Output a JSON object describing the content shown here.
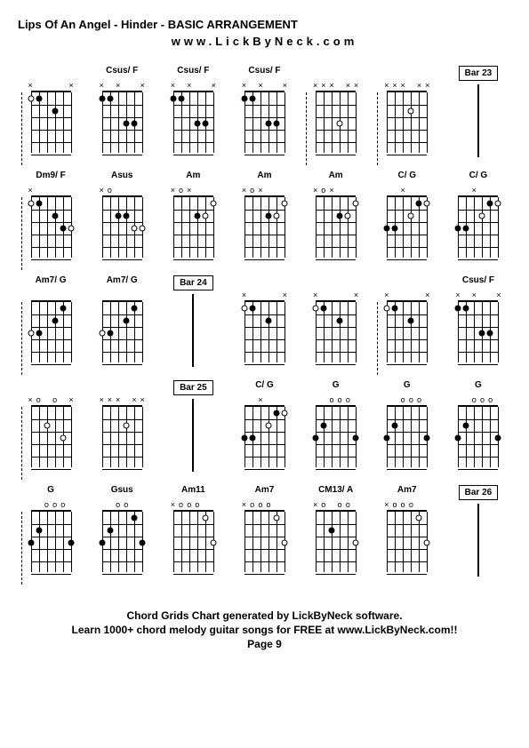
{
  "title": "Lips Of An Angel - Hinder - BASIC ARRANGEMENT",
  "subtitle": "www.LickByNeck.com",
  "footer": {
    "line1": "Chord Grids Chart generated by LickByNeck software.",
    "line2": "Learn 1000+ chord melody guitar songs for FREE at www.LickByNeck.com!!",
    "page": "Page 9"
  },
  "styling": {
    "background_color": "#ffffff",
    "text_color": "#000000",
    "grid_cols": 7,
    "grid_rows": 5,
    "diagram_width": 55,
    "diagram_height": 85,
    "fret_count": 5,
    "string_count": 6,
    "title_fontsize": 13,
    "label_fontsize": 10,
    "footer_fontsize": 12
  },
  "cells": [
    {
      "type": "chord",
      "label": "",
      "dashed": true,
      "nut": [
        "x",
        "",
        "",
        "",
        "",
        "x"
      ],
      "dots": [
        {
          "s": 0,
          "f": 1,
          "open": true
        },
        {
          "s": 1,
          "f": 1
        },
        {
          "s": 3,
          "f": 2
        }
      ]
    },
    {
      "type": "chord",
      "label": "Csus/ F",
      "nut": [
        "x",
        "",
        "x",
        "",
        "",
        "x"
      ],
      "dots": [
        {
          "s": 0,
          "f": 1
        },
        {
          "s": 1,
          "f": 1
        },
        {
          "s": 3,
          "f": 3
        },
        {
          "s": 4,
          "f": 3
        }
      ]
    },
    {
      "type": "chord",
      "label": "Csus/ F",
      "nut": [
        "x",
        "",
        "x",
        "",
        "",
        "x"
      ],
      "dots": [
        {
          "s": 0,
          "f": 1
        },
        {
          "s": 1,
          "f": 1
        },
        {
          "s": 3,
          "f": 3
        },
        {
          "s": 4,
          "f": 3
        }
      ]
    },
    {
      "type": "chord",
      "label": "Csus/ F",
      "nut": [
        "x",
        "",
        "x",
        "",
        "",
        "x"
      ],
      "dots": [
        {
          "s": 0,
          "f": 1
        },
        {
          "s": 1,
          "f": 1
        },
        {
          "s": 3,
          "f": 3
        },
        {
          "s": 4,
          "f": 3
        }
      ]
    },
    {
      "type": "chord",
      "label": "",
      "dashed": true,
      "nut": [
        "x",
        "x",
        "x",
        "",
        "x",
        "x"
      ],
      "dots": [
        {
          "s": 3,
          "f": 3,
          "open": true
        }
      ]
    },
    {
      "type": "chord",
      "label": "",
      "dashed": true,
      "nut": [
        "x",
        "x",
        "x",
        "",
        "x",
        "x"
      ],
      "dots": [
        {
          "s": 3,
          "f": 2,
          "open": true
        }
      ]
    },
    {
      "type": "bar",
      "label": "Bar 23"
    },
    {
      "type": "chord",
      "label": "Dm9/ F",
      "dashed": true,
      "nut": [
        "x",
        "",
        "",
        "",
        "",
        ""
      ],
      "dots": [
        {
          "s": 0,
          "f": 1,
          "open": true
        },
        {
          "s": 1,
          "f": 1
        },
        {
          "s": 3,
          "f": 2
        },
        {
          "s": 4,
          "f": 3
        },
        {
          "s": 5,
          "f": 3,
          "open": true
        }
      ]
    },
    {
      "type": "chord",
      "label": "Asus",
      "nut": [
        "x",
        "o",
        "",
        "",
        "",
        ""
      ],
      "dots": [
        {
          "s": 2,
          "f": 2
        },
        {
          "s": 3,
          "f": 2
        },
        {
          "s": 4,
          "f": 3,
          "open": true
        },
        {
          "s": 5,
          "f": 3,
          "open": true
        }
      ]
    },
    {
      "type": "chord",
      "label": "Am",
      "nut": [
        "x",
        "o",
        "x",
        "",
        "",
        ""
      ],
      "dots": [
        {
          "s": 3,
          "f": 2
        },
        {
          "s": 4,
          "f": 2,
          "open": true
        },
        {
          "s": 5,
          "f": 1,
          "open": true
        }
      ]
    },
    {
      "type": "chord",
      "label": "Am",
      "nut": [
        "x",
        "o",
        "x",
        "",
        "",
        ""
      ],
      "dots": [
        {
          "s": 3,
          "f": 2
        },
        {
          "s": 4,
          "f": 2,
          "open": true
        },
        {
          "s": 5,
          "f": 1,
          "open": true
        }
      ]
    },
    {
      "type": "chord",
      "label": "Am",
      "nut": [
        "x",
        "o",
        "x",
        "",
        "",
        ""
      ],
      "dots": [
        {
          "s": 3,
          "f": 2
        },
        {
          "s": 4,
          "f": 2,
          "open": true
        },
        {
          "s": 5,
          "f": 1,
          "open": true
        }
      ]
    },
    {
      "type": "chord",
      "label": "C/ G",
      "nut": [
        "",
        "",
        "x",
        "",
        "",
        ""
      ],
      "dots": [
        {
          "s": 0,
          "f": 3
        },
        {
          "s": 1,
          "f": 3
        },
        {
          "s": 3,
          "f": 2,
          "open": true
        },
        {
          "s": 4,
          "f": 1
        },
        {
          "s": 5,
          "f": 1,
          "open": true
        }
      ]
    },
    {
      "type": "chord",
      "label": "C/ G",
      "nut": [
        "",
        "",
        "x",
        "",
        "",
        ""
      ],
      "dots": [
        {
          "s": 0,
          "f": 3
        },
        {
          "s": 1,
          "f": 3
        },
        {
          "s": 3,
          "f": 2,
          "open": true
        },
        {
          "s": 4,
          "f": 1
        },
        {
          "s": 5,
          "f": 1,
          "open": true
        }
      ]
    },
    {
      "type": "chord",
      "label": "Am7/ G",
      "dashed": true,
      "nut": [
        "",
        "",
        "",
        "",
        "",
        ""
      ],
      "dots": [
        {
          "s": 0,
          "f": 3,
          "open": true
        },
        {
          "s": 1,
          "f": 3
        },
        {
          "s": 3,
          "f": 2
        },
        {
          "s": 4,
          "f": 1
        }
      ]
    },
    {
      "type": "chord",
      "label": "Am7/ G",
      "nut": [
        "",
        "",
        "",
        "",
        "",
        ""
      ],
      "dots": [
        {
          "s": 0,
          "f": 3,
          "open": true
        },
        {
          "s": 1,
          "f": 3
        },
        {
          "s": 3,
          "f": 2
        },
        {
          "s": 4,
          "f": 1
        }
      ]
    },
    {
      "type": "bar",
      "label": "Bar 24"
    },
    {
      "type": "chord",
      "label": "",
      "nut": [
        "x",
        "",
        "",
        "",
        "",
        "x"
      ],
      "dots": [
        {
          "s": 0,
          "f": 1,
          "open": true
        },
        {
          "s": 1,
          "f": 1
        },
        {
          "s": 3,
          "f": 2
        }
      ]
    },
    {
      "type": "chord",
      "label": "",
      "nut": [
        "x",
        "",
        "",
        "",
        "",
        "x"
      ],
      "dots": [
        {
          "s": 0,
          "f": 1,
          "open": true
        },
        {
          "s": 1,
          "f": 1
        },
        {
          "s": 3,
          "f": 2
        }
      ]
    },
    {
      "type": "chord",
      "label": "",
      "dashed": true,
      "nut": [
        "x",
        "",
        "",
        "",
        "",
        "x"
      ],
      "dots": [
        {
          "s": 0,
          "f": 1,
          "open": true
        },
        {
          "s": 1,
          "f": 1
        },
        {
          "s": 3,
          "f": 2
        }
      ]
    },
    {
      "type": "chord",
      "label": "Csus/ F",
      "nut": [
        "x",
        "",
        "x",
        "",
        "",
        "x"
      ],
      "dots": [
        {
          "s": 0,
          "f": 1
        },
        {
          "s": 1,
          "f": 1
        },
        {
          "s": 3,
          "f": 3
        },
        {
          "s": 4,
          "f": 3
        }
      ]
    },
    {
      "type": "chord",
      "label": "",
      "dashed": true,
      "nut": [
        "x",
        "o",
        "",
        "o",
        "",
        "x"
      ],
      "dots": [
        {
          "s": 2,
          "f": 2,
          "open": true
        },
        {
          "s": 4,
          "f": 3,
          "open": true
        }
      ]
    },
    {
      "type": "chord",
      "label": "",
      "nut": [
        "x",
        "x",
        "x",
        "",
        "x",
        "x"
      ],
      "dots": [
        {
          "s": 3,
          "f": 2,
          "open": true
        }
      ]
    },
    {
      "type": "bar",
      "label": "Bar 25"
    },
    {
      "type": "chord",
      "label": "C/ G",
      "nut": [
        "",
        "",
        "x",
        "",
        "",
        ""
      ],
      "dots": [
        {
          "s": 0,
          "f": 3
        },
        {
          "s": 1,
          "f": 3
        },
        {
          "s": 3,
          "f": 2,
          "open": true
        },
        {
          "s": 4,
          "f": 1
        },
        {
          "s": 5,
          "f": 1,
          "open": true
        }
      ]
    },
    {
      "type": "chord",
      "label": "G",
      "nut": [
        "",
        "",
        "o",
        "o",
        "o",
        ""
      ],
      "dots": [
        {
          "s": 0,
          "f": 3
        },
        {
          "s": 1,
          "f": 2
        },
        {
          "s": 5,
          "f": 3
        }
      ]
    },
    {
      "type": "chord",
      "label": "G",
      "nut": [
        "",
        "",
        "o",
        "o",
        "o",
        ""
      ],
      "dots": [
        {
          "s": 0,
          "f": 3
        },
        {
          "s": 1,
          "f": 2
        },
        {
          "s": 5,
          "f": 3
        }
      ]
    },
    {
      "type": "chord",
      "label": "G",
      "nut": [
        "",
        "",
        "o",
        "o",
        "o",
        ""
      ],
      "dots": [
        {
          "s": 0,
          "f": 3
        },
        {
          "s": 1,
          "f": 2
        },
        {
          "s": 5,
          "f": 3
        }
      ]
    },
    {
      "type": "chord",
      "label": "G",
      "dashed": true,
      "nut": [
        "",
        "",
        "o",
        "o",
        "o",
        ""
      ],
      "dots": [
        {
          "s": 0,
          "f": 3
        },
        {
          "s": 1,
          "f": 2
        },
        {
          "s": 5,
          "f": 3
        }
      ]
    },
    {
      "type": "chord",
      "label": "Gsus",
      "nut": [
        "",
        "",
        "o",
        "o",
        "",
        ""
      ],
      "dots": [
        {
          "s": 0,
          "f": 3
        },
        {
          "s": 1,
          "f": 2
        },
        {
          "s": 4,
          "f": 1
        },
        {
          "s": 5,
          "f": 3
        }
      ]
    },
    {
      "type": "chord",
      "label": "Am11",
      "nut": [
        "x",
        "o",
        "o",
        "o",
        "",
        ""
      ],
      "dots": [
        {
          "s": 4,
          "f": 1,
          "open": true
        },
        {
          "s": 5,
          "f": 3,
          "open": true
        }
      ]
    },
    {
      "type": "chord",
      "label": "Am7",
      "nut": [
        "x",
        "o",
        "o",
        "o",
        "",
        ""
      ],
      "dots": [
        {
          "s": 4,
          "f": 1,
          "open": true
        },
        {
          "s": 5,
          "f": 3,
          "open": true
        }
      ]
    },
    {
      "type": "chord",
      "label": "CM13/ A",
      "nut": [
        "x",
        "o",
        "",
        "o",
        "o",
        ""
      ],
      "dots": [
        {
          "s": 2,
          "f": 2
        },
        {
          "s": 5,
          "f": 3,
          "open": true
        }
      ]
    },
    {
      "type": "chord",
      "label": "Am7",
      "nut": [
        "x",
        "o",
        "o",
        "o",
        "",
        ""
      ],
      "dots": [
        {
          "s": 4,
          "f": 1,
          "open": true
        },
        {
          "s": 5,
          "f": 3,
          "open": true
        }
      ]
    },
    {
      "type": "bar",
      "label": "Bar 26"
    }
  ]
}
